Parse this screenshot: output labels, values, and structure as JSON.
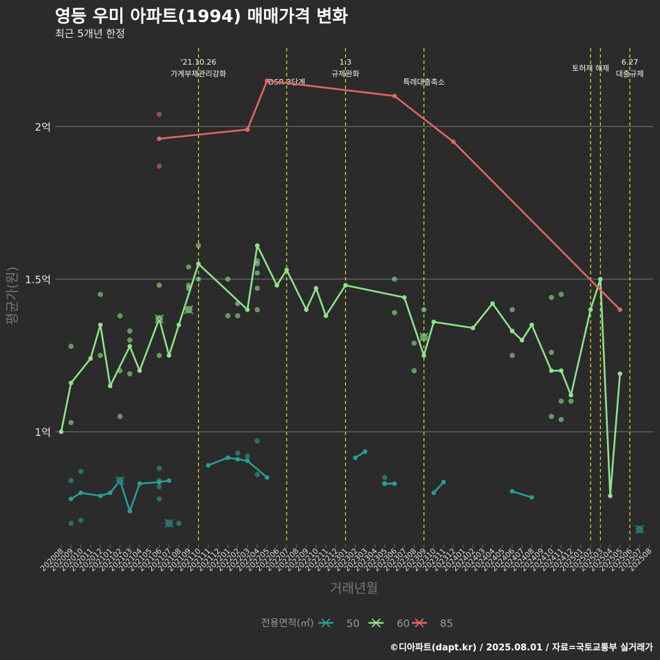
{
  "title": "영등 우미 아파트(1994) 매매가격 변화",
  "subtitle": "최근 5개년 한정",
  "caption": "©디아파트(dapt.kr) / 2025.08.01 / 자료=국토교통부 실거래가",
  "chart_data": {
    "type": "line",
    "xlabel": "거래년월",
    "ylabel": "평균가(원)",
    "y_unit": "억",
    "ylim": [
      0.64,
      2.27
    ],
    "y_ticks": [
      {
        "value": 1,
        "label": "1억"
      },
      {
        "value": 1.5,
        "label": "1.5억"
      },
      {
        "value": 2,
        "label": "2억"
      }
    ],
    "x_labels": [
      "202008",
      "202009",
      "202010",
      "202011",
      "202012",
      "202101",
      "202102",
      "202103",
      "202104",
      "202105",
      "202106",
      "202107",
      "202108",
      "202109",
      "202110",
      "202111",
      "202112",
      "202201",
      "202202",
      "202203",
      "202204",
      "202205",
      "202206",
      "202207",
      "202208",
      "202209",
      "202210",
      "202211",
      "202212",
      "202301",
      "202302",
      "202303",
      "202304",
      "202305",
      "202306",
      "202307",
      "202308",
      "202309",
      "202310",
      "202311",
      "202312",
      "202401",
      "202402",
      "202403",
      "202404",
      "202405",
      "202406",
      "202407",
      "202408",
      "202409",
      "202410",
      "202411",
      "202412",
      "202501",
      "202502",
      "202503",
      "202504",
      "202505",
      "202506",
      "202507",
      "202508"
    ],
    "legend": {
      "title": "전용면적(㎡)",
      "position": "bottom",
      "items": [
        "50",
        "60",
        "85"
      ]
    },
    "grid": true,
    "events": [
      {
        "month": "202110",
        "lines": [
          "'21.10.26",
          "가계부채관리강화"
        ]
      },
      {
        "month": "202207",
        "lines": [
          "DSR 3단계"
        ]
      },
      {
        "month": "202301",
        "lines": [
          "1.3",
          "규제완화"
        ]
      },
      {
        "month": "202309",
        "lines": [
          "특례대출축소"
        ]
      },
      {
        "month": "202502",
        "lines": [
          "토허제 해제"
        ]
      },
      {
        "month": "202503",
        "lines": []
      },
      {
        "month": "202506",
        "lines": [
          "6.27",
          "대출규제"
        ]
      }
    ],
    "series": [
      {
        "name": "50",
        "color": "#2b9c96",
        "line": [
          [
            [
              "202009",
              0.78
            ],
            [
              "202010",
              0.8
            ],
            [
              "202012",
              0.79
            ],
            [
              "202101",
              0.8
            ],
            [
              "202102",
              0.84
            ],
            [
              "202103",
              0.74
            ],
            [
              "202104",
              0.83
            ],
            [
              "202106",
              0.835
            ],
            [
              "202107",
              0.84
            ]
          ],
          [
            [
              "202111",
              0.89
            ],
            [
              "202201",
              0.915
            ],
            [
              "202202",
              0.91
            ],
            [
              "202203",
              0.905
            ],
            [
              "202205",
              0.85
            ]
          ],
          [
            [
              "202302",
              0.915
            ],
            [
              "202303",
              0.935
            ]
          ],
          [
            [
              "202305",
              0.83
            ],
            [
              "202306",
              0.83
            ]
          ],
          [
            [
              "202310",
              0.8
            ],
            [
              "202311",
              0.835
            ]
          ],
          [
            [
              "202406",
              0.805
            ],
            [
              "202408",
              0.785
            ]
          ]
        ],
        "points": [
          [
            "202009",
            0.84
          ],
          [
            "202009",
            0.7
          ],
          [
            "202010",
            0.87
          ],
          [
            "202010",
            0.71
          ],
          [
            "202106",
            0.88
          ],
          [
            "202106",
            0.84
          ],
          [
            "202106",
            0.82
          ],
          [
            "202106",
            0.78
          ],
          [
            "202108",
            0.7
          ],
          [
            "202202",
            0.93
          ],
          [
            "202203",
            0.92
          ],
          [
            "202204",
            0.97
          ],
          [
            "202204",
            0.86
          ],
          [
            "202305",
            0.85
          ],
          [
            "202305",
            0.83
          ]
        ],
        "crosses": [
          [
            "202102",
            0.84
          ],
          [
            "202107",
            0.7
          ],
          [
            "202507",
            0.68
          ]
        ]
      },
      {
        "name": "60",
        "color": "#8fe38a",
        "line": [
          [
            [
              "202008",
              1.0
            ],
            [
              "202009",
              1.16
            ],
            [
              "202011",
              1.24
            ],
            [
              "202012",
              1.35
            ],
            [
              "202101",
              1.15
            ],
            [
              "202103",
              1.28
            ],
            [
              "202104",
              1.2
            ],
            [
              "202106",
              1.37
            ],
            [
              "202107",
              1.25
            ],
            [
              "202108",
              1.35
            ],
            [
              "202110",
              1.55
            ],
            [
              "202203",
              1.4
            ],
            [
              "202204",
              1.61
            ],
            [
              "202206",
              1.48
            ],
            [
              "202207",
              1.53
            ],
            [
              "202209",
              1.4
            ],
            [
              "202210",
              1.47
            ],
            [
              "202211",
              1.38
            ],
            [
              "202301",
              1.48
            ],
            [
              "202307",
              1.44
            ],
            [
              "202309",
              1.25
            ],
            [
              "202310",
              1.36
            ],
            [
              "202402",
              1.34
            ],
            [
              "202404",
              1.42
            ],
            [
              "202406",
              1.33
            ],
            [
              "202407",
              1.3
            ],
            [
              "202408",
              1.35
            ],
            [
              "202410",
              1.2
            ],
            [
              "202411",
              1.2
            ],
            [
              "202412",
              1.12
            ],
            [
              "202502",
              1.4
            ],
            [
              "202503",
              1.5
            ],
            [
              "202504",
              0.79
            ],
            [
              "202505",
              1.19
            ]
          ]
        ],
        "points": [
          [
            "202009",
            1.28
          ],
          [
            "202009",
            1.03
          ],
          [
            "202012",
            1.45
          ],
          [
            "202012",
            1.25
          ],
          [
            "202102",
            1.38
          ],
          [
            "202102",
            1.2
          ],
          [
            "202102",
            1.05
          ],
          [
            "202103",
            1.33
          ],
          [
            "202103",
            1.3
          ],
          [
            "202103",
            1.19
          ],
          [
            "202106",
            1.48
          ],
          [
            "202106",
            1.25
          ],
          [
            "202109",
            1.54
          ],
          [
            "202109",
            1.48
          ],
          [
            "202109",
            1.47
          ],
          [
            "202110",
            1.61
          ],
          [
            "202110",
            1.5
          ],
          [
            "202201",
            1.5
          ],
          [
            "202201",
            1.38
          ],
          [
            "202202",
            1.42
          ],
          [
            "202202",
            1.38
          ],
          [
            "202204",
            1.56
          ],
          [
            "202204",
            1.55
          ],
          [
            "202204",
            1.52
          ],
          [
            "202204",
            1.47
          ],
          [
            "202204",
            1.4
          ],
          [
            "202306",
            1.5
          ],
          [
            "202306",
            1.39
          ],
          [
            "202308",
            1.29
          ],
          [
            "202308",
            1.2
          ],
          [
            "202309",
            1.4
          ],
          [
            "202406",
            1.4
          ],
          [
            "202406",
            1.25
          ],
          [
            "202410",
            1.44
          ],
          [
            "202410",
            1.26
          ],
          [
            "202410",
            1.05
          ],
          [
            "202411",
            1.45
          ],
          [
            "202411",
            1.1
          ],
          [
            "202411",
            1.04
          ],
          [
            "202412",
            1.1
          ]
        ],
        "crosses": [
          [
            "202106",
            1.37
          ],
          [
            "202109",
            1.4
          ],
          [
            "202309",
            1.31
          ]
        ]
      },
      {
        "name": "85",
        "color": "#e06666",
        "line": [
          [
            [
              "202106",
              1.96
            ],
            [
              "202203",
              1.99
            ],
            [
              "202205",
              2.15
            ],
            [
              "202306",
              2.1
            ],
            [
              "202312",
              1.95
            ],
            [
              "202505",
              1.4
            ]
          ]
        ],
        "points": [
          [
            "202106",
            2.04
          ],
          [
            "202106",
            1.87
          ]
        ],
        "crosses": []
      }
    ]
  }
}
